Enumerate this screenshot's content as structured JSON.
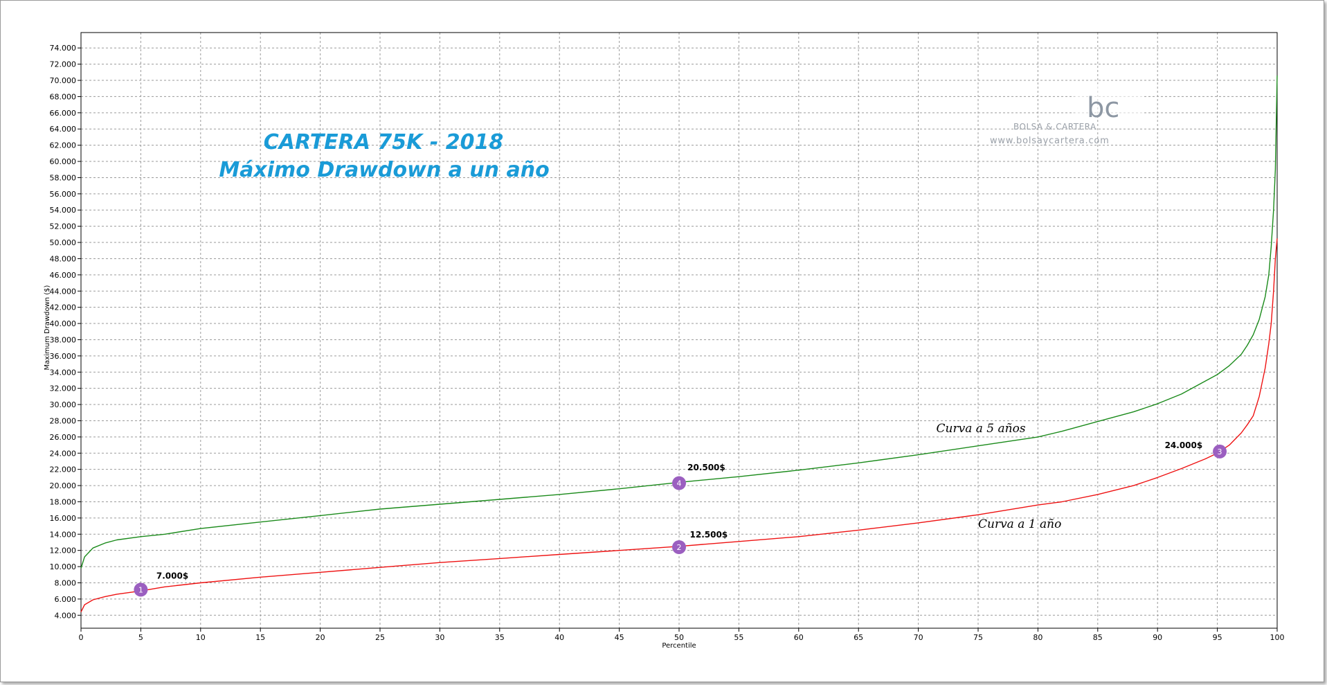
{
  "chart_data": {
    "type": "line",
    "title": "CARTERA 75K - 2018",
    "subtitle": "Máximo Drawdown a un año",
    "xlabel": "Percentile",
    "ylabel": "Maximum Drawdown ($)",
    "xlim": [
      0,
      100
    ],
    "ylim": [
      2400,
      75900
    ],
    "x_ticks": [
      "0",
      "5",
      "10",
      "15",
      "20",
      "25",
      "30",
      "35",
      "40",
      "45",
      "50",
      "55",
      "60",
      "65",
      "70",
      "75",
      "80",
      "85",
      "90",
      "95",
      "100"
    ],
    "y_ticks": [
      "4.000",
      "6.000",
      "8.000",
      "10.000",
      "12.000",
      "14.000",
      "16.000",
      "18.000",
      "20.000",
      "22.000",
      "24.000",
      "26.000",
      "28.000",
      "30.000",
      "32.000",
      "34.000",
      "36.000",
      "38.000",
      "40.000",
      "42.000",
      "44.000",
      "46.000",
      "48.000",
      "50.000",
      "52.000",
      "54.000",
      "56.000",
      "58.000",
      "60.000",
      "62.000",
      "64.000",
      "66.000",
      "68.000",
      "70.000",
      "72.000",
      "74.000"
    ],
    "grid": true,
    "colors": {
      "title": "#1a9bd7",
      "five_year": "#1a8a1a",
      "one_year": "#ee1111",
      "marker": "#9b5fc0",
      "grid": "#9a9a9a"
    },
    "series": [
      {
        "key": "five_year",
        "x": [
          0,
          0.3,
          1,
          2,
          3,
          5,
          7,
          10,
          15,
          20,
          25,
          30,
          35,
          40,
          45,
          50,
          55,
          60,
          65,
          70,
          75,
          80,
          82,
          85,
          88,
          90,
          92,
          94,
          95,
          96,
          97,
          97.5,
          98,
          98.5,
          99,
          99.3,
          99.5,
          99.7,
          99.85,
          100
        ],
        "y": [
          9800,
          11200,
          12300,
          12900,
          13300,
          13700,
          14000,
          14700,
          15500,
          16300,
          17100,
          17700,
          18300,
          18900,
          19600,
          20400,
          21100,
          21900,
          22800,
          23800,
          24900,
          26000,
          26700,
          27900,
          29100,
          30100,
          31300,
          32900,
          33700,
          34800,
          36200,
          37300,
          38600,
          40500,
          43300,
          46000,
          49500,
          54000,
          59000,
          70600
        ]
      },
      {
        "key": "one_year",
        "x": [
          0,
          0.3,
          1,
          2,
          3,
          5,
          7,
          10,
          15,
          20,
          25,
          30,
          35,
          40,
          45,
          50,
          55,
          60,
          65,
          70,
          75,
          80,
          82,
          85,
          88,
          90,
          92,
          94,
          95,
          96,
          97,
          97.5,
          98,
          98.5,
          99,
          99.3,
          99.5,
          99.7,
          99.85,
          100
        ],
        "y": [
          4400,
          5300,
          5900,
          6300,
          6600,
          7000,
          7500,
          8000,
          8700,
          9300,
          9900,
          10500,
          11000,
          11500,
          12000,
          12500,
          13100,
          13700,
          14500,
          15400,
          16400,
          17600,
          18000,
          18900,
          20000,
          21000,
          22100,
          23300,
          24000,
          25000,
          26500,
          27500,
          28600,
          31000,
          34500,
          37500,
          40000,
          44000,
          48000,
          50500
        ]
      }
    ],
    "series_labels": [
      {
        "key": "five_year",
        "text": "Curva a 5 años",
        "x": 71.5,
        "y": 26600
      },
      {
        "key": "one_year",
        "text": "Curva a 1 año",
        "x": 75,
        "y": 14800
      }
    ],
    "annotations": [
      {
        "number": "1",
        "x": 5,
        "y": 7150,
        "label": "7.000$",
        "label_x": 6.3,
        "label_y": 8500
      },
      {
        "number": "2",
        "x": 50,
        "y": 12400,
        "label": "12.500$",
        "label_x": 50.9,
        "label_y": 13600
      },
      {
        "number": "3",
        "x": 95.2,
        "y": 24200,
        "label": "24.000$",
        "label_x": 90.6,
        "label_y": 24600
      },
      {
        "number": "4",
        "x": 50,
        "y": 20300,
        "label": "20.500$",
        "label_x": 50.7,
        "label_y": 21900
      }
    ]
  },
  "watermark": {
    "glyph": "bc",
    "brand": "BOLSA & CARTERA",
    "url": "www.bolsaycartera.com"
  }
}
